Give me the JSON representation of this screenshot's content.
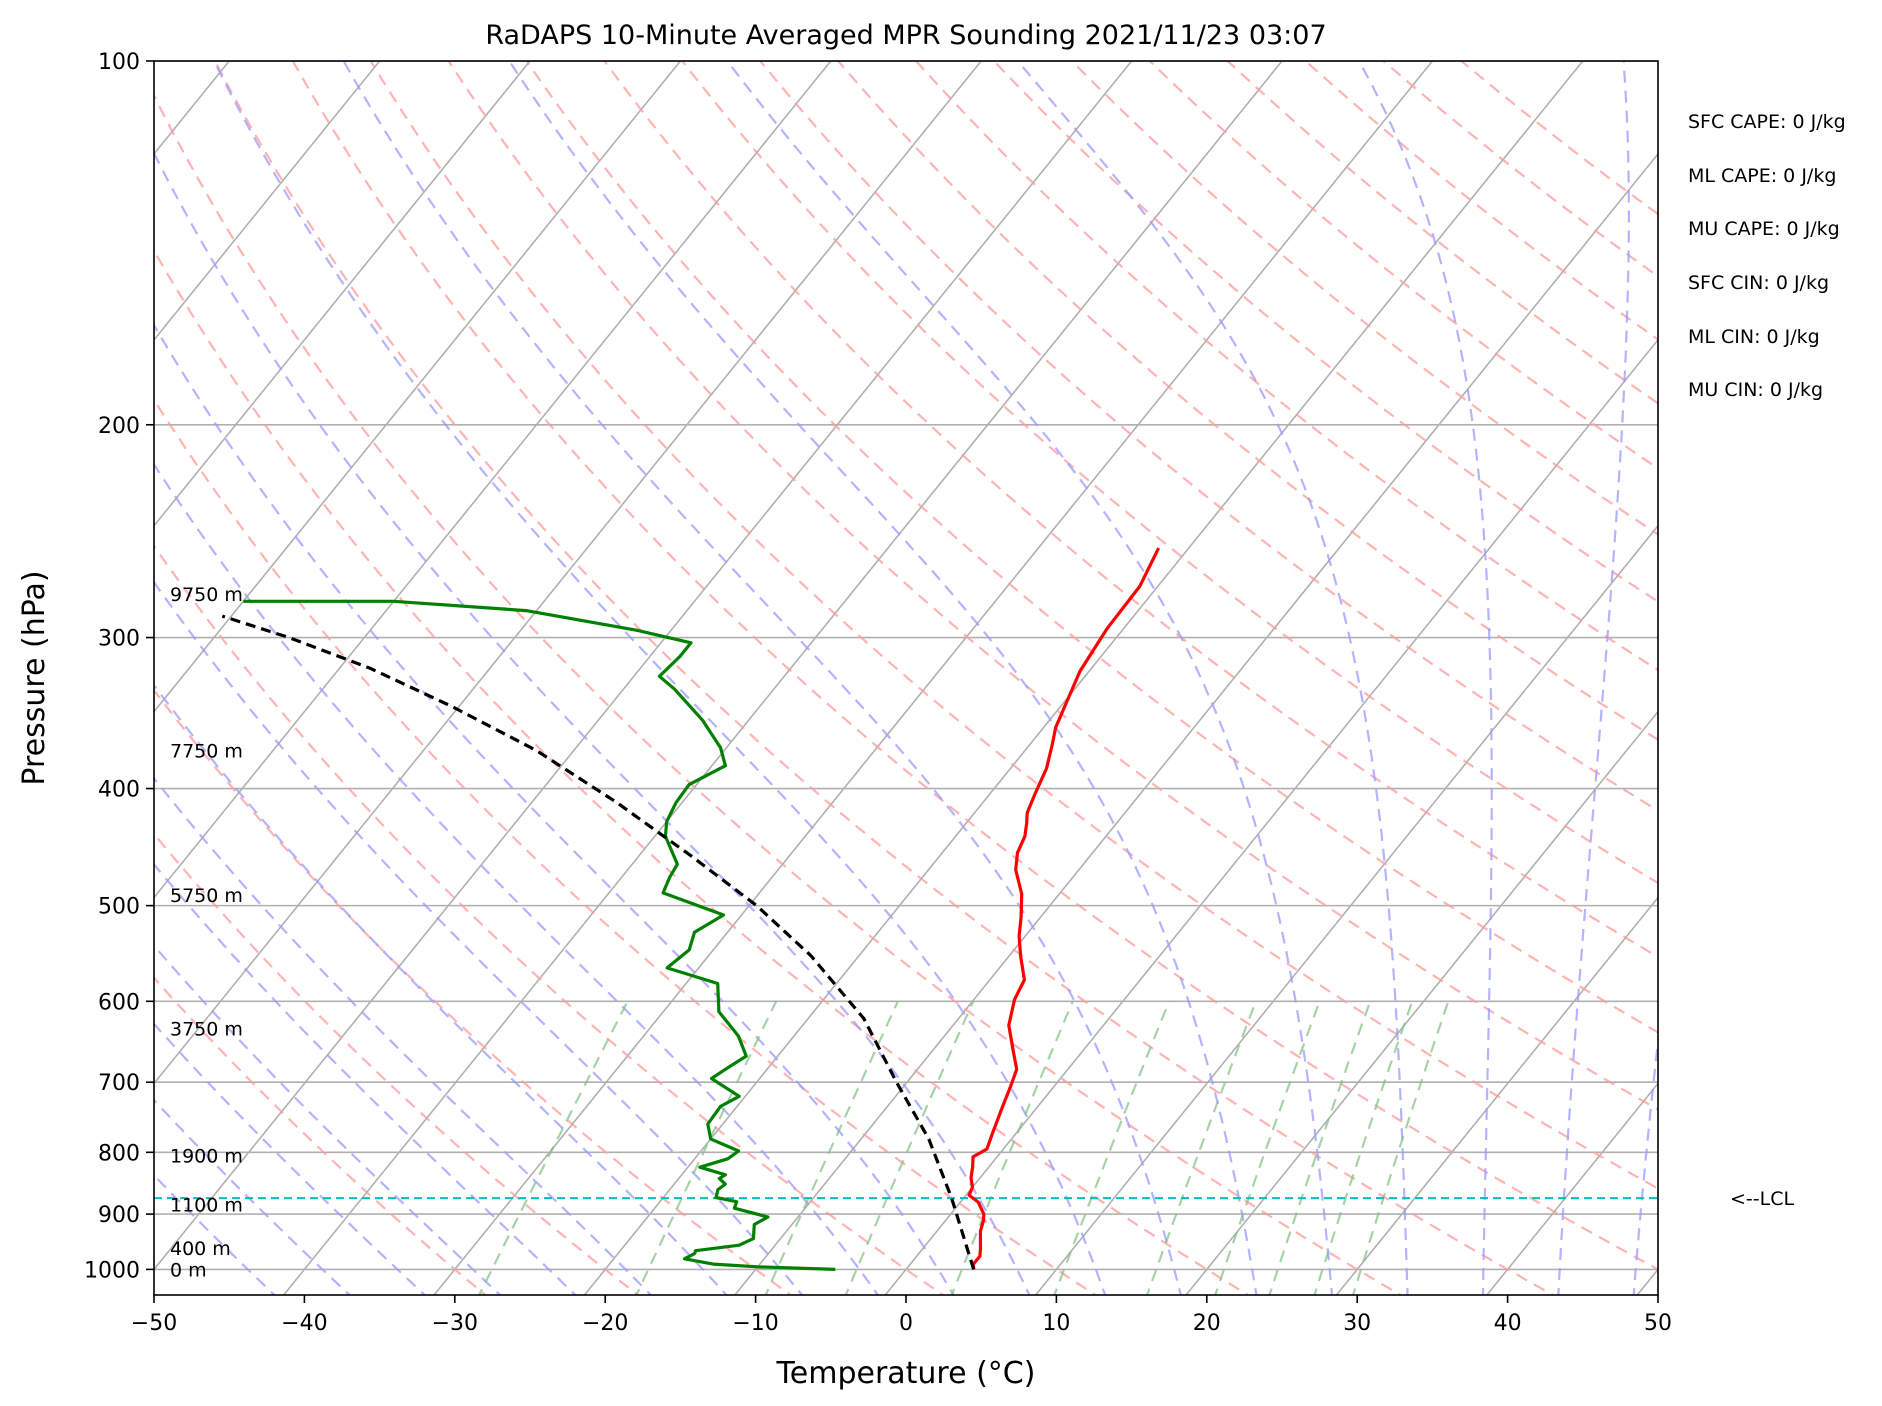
{
  "chart_data": {
    "type": "line",
    "title": "RaDAPS 10-Minute Averaged MPR Sounding 2021/11/23 03:07",
    "xlabel": "Temperature (°C)",
    "ylabel": "Pressure (hPa)",
    "xlim": [
      -50,
      50
    ],
    "ylim": [
      1050,
      100
    ],
    "y_scale": "log",
    "x_ticks": [
      "−50",
      "−40",
      "−30",
      "−20",
      "−10",
      "0",
      "10",
      "20",
      "30",
      "40",
      "50"
    ],
    "x_tick_values": [
      -50,
      -40,
      -30,
      -20,
      -10,
      0,
      10,
      20,
      30,
      40,
      50
    ],
    "y_ticks": [
      "100",
      "200",
      "300",
      "400",
      "500",
      "600",
      "700",
      "800",
      "900",
      "1000"
    ],
    "y_tick_values": [
      100,
      200,
      300,
      400,
      500,
      600,
      700,
      800,
      900,
      1000
    ],
    "grid": true,
    "skew_per_decade_c": 65,
    "series": [
      {
        "role": "temperature",
        "color": "#ff0000",
        "points": [
          [
            4.5,
            1000
          ],
          [
            4.2,
            990
          ],
          [
            4.2,
            975
          ],
          [
            3.8,
            960
          ],
          [
            2.9,
            930
          ],
          [
            2.5,
            910
          ],
          [
            2.2,
            900
          ],
          [
            1.2,
            880
          ],
          [
            0.2,
            868
          ],
          [
            0.0,
            855
          ],
          [
            -0.6,
            840
          ],
          [
            -1.1,
            822
          ],
          [
            -1.6,
            807
          ],
          [
            -1.1,
            795
          ],
          [
            -1.6,
            770
          ],
          [
            -2.3,
            735
          ],
          [
            -2.9,
            705
          ],
          [
            -3.4,
            683
          ],
          [
            -4.7,
            658
          ],
          [
            -6.3,
            628
          ],
          [
            -7.3,
            598
          ],
          [
            -7.7,
            576
          ],
          [
            -9.2,
            551
          ],
          [
            -10.4,
            530
          ],
          [
            -11.3,
            511
          ],
          [
            -12.5,
            489
          ],
          [
            -14.2,
            467
          ],
          [
            -15.0,
            452
          ],
          [
            -15.4,
            438
          ],
          [
            -16.0,
            427
          ],
          [
            -16.5,
            419
          ],
          [
            -17.0,
            404
          ],
          [
            -17.6,
            385
          ],
          [
            -18.5,
            368
          ],
          [
            -19.2,
            356
          ],
          [
            -20.6,
            320
          ],
          [
            -21.1,
            295
          ],
          [
            -21.2,
            272
          ],
          [
            -22.0,
            253
          ]
        ]
      },
      {
        "role": "dewpoint",
        "color": "#008000",
        "points": [
          [
            -4.7,
            1000
          ],
          [
            -10.0,
            995
          ],
          [
            -13.1,
            990
          ],
          [
            -15.3,
            980
          ],
          [
            -14.9,
            970
          ],
          [
            -15.0,
            965
          ],
          [
            -12.4,
            955
          ],
          [
            -11.8,
            943
          ],
          [
            -12.5,
            918
          ],
          [
            -12.0,
            905
          ],
          [
            -14.7,
            890
          ],
          [
            -14.9,
            879
          ],
          [
            -16.5,
            872
          ],
          [
            -16.8,
            859
          ],
          [
            -16.6,
            850
          ],
          [
            -17.3,
            841
          ],
          [
            -17.1,
            835
          ],
          [
            -19.2,
            823
          ],
          [
            -17.8,
            810
          ],
          [
            -17.5,
            798
          ],
          [
            -20.0,
            780
          ],
          [
            -21.0,
            758
          ],
          [
            -21.1,
            733
          ],
          [
            -20.4,
            719
          ],
          [
            -23.2,
            695
          ],
          [
            -22.7,
            681
          ],
          [
            -22.1,
            666
          ],
          [
            -23.7,
            641
          ],
          [
            -26.3,
            612
          ],
          [
            -27.9,
            580
          ],
          [
            -32.1,
            563
          ],
          [
            -31.6,
            544
          ],
          [
            -32.2,
            526
          ],
          [
            -31.2,
            509
          ],
          [
            -36.4,
            488
          ],
          [
            -36.8,
            474
          ],
          [
            -37.0,
            462
          ],
          [
            -39.3,
            438
          ],
          [
            -40.0,
            426
          ],
          [
            -40.4,
            411
          ],
          [
            -40.5,
            397
          ],
          [
            -39.1,
            383
          ],
          [
            -40.4,
            370
          ],
          [
            -43.1,
            351
          ],
          [
            -46.6,
            331
          ],
          [
            -48.3,
            323
          ],
          [
            -48.0,
            311
          ],
          [
            -48.0,
            303
          ],
          [
            -52.2,
            296
          ],
          [
            -60.7,
            285
          ],
          [
            -70.0,
            280
          ],
          [
            -80.0,
            280
          ]
        ]
      },
      {
        "role": "parcel",
        "color": "#000000",
        "dashed": true,
        "points": [
          [
            4.5,
            1000
          ],
          [
            -0.8,
            873
          ],
          [
            -5.5,
            780
          ],
          [
            -10.7,
            700
          ],
          [
            -16.3,
            620
          ],
          [
            -23.2,
            550
          ],
          [
            -29.5,
            500
          ],
          [
            -36.5,
            455
          ],
          [
            -44.5,
            410
          ],
          [
            -52.5,
            372
          ],
          [
            -60.5,
            342
          ],
          [
            -68.0,
            318
          ],
          [
            -75.0,
            300
          ],
          [
            -80.6,
            288
          ]
        ]
      }
    ],
    "lcl_pressure": 873,
    "lcl_label": "<--LCL",
    "height_labels": [
      {
        "label": "9750 m",
        "pressure": 276
      },
      {
        "label": "7750 m",
        "pressure": 372
      },
      {
        "label": "5750 m",
        "pressure": 490
      },
      {
        "label": "3750 m",
        "pressure": 632
      },
      {
        "label": "1900 m",
        "pressure": 805
      },
      {
        "label": "1100 m",
        "pressure": 884
      },
      {
        "label": "400 m",
        "pressure": 960
      },
      {
        "label": "0 m",
        "pressure": 1000
      }
    ],
    "indices": [
      "SFC CAPE: 0 J/kg",
      "ML CAPE: 0 J/kg",
      "MU CAPE: 0 J/kg",
      "SFC CIN: 0 J/kg",
      "ML CIN: 0 J/kg",
      "MU CIN: 0 J/kg"
    ],
    "colors": {
      "isotherm": "#b0b0b0",
      "dry_adiabat": "#ff9a9a",
      "moist_adiabat": "#9a9aff",
      "mixing_ratio": "#80c080",
      "lcl_line": "#00bfbf"
    }
  }
}
